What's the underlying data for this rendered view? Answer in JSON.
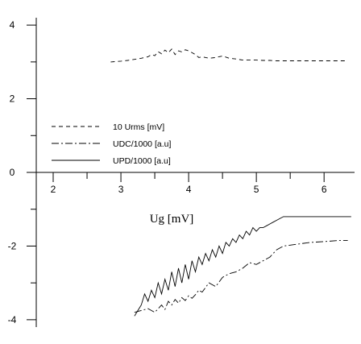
{
  "chart_data": {
    "type": "line",
    "title": "",
    "xlabel": "Ug [mV]",
    "ylabel": "",
    "xlim": [
      1.75,
      6.45
    ],
    "ylim": [
      -4.2,
      4.2
    ],
    "x_ticks": [
      "2",
      "3",
      "4",
      "5",
      "6"
    ],
    "y_ticks": [
      "4",
      "2",
      "0",
      "-2",
      "-4"
    ],
    "grid": false,
    "legend_position": "center-left",
    "series": [
      {
        "name": "10 Urms [mV]",
        "line_style": "dashed",
        "color": "#000000",
        "x": [
          2.85,
          3.0,
          3.1,
          3.2,
          3.3,
          3.4,
          3.45,
          3.5,
          3.55,
          3.6,
          3.65,
          3.7,
          3.75,
          3.8,
          3.85,
          3.9,
          3.95,
          4.0,
          4.05,
          4.1,
          4.15,
          4.2,
          4.3,
          4.4,
          4.5,
          4.6,
          4.7,
          4.8,
          4.9,
          5.0,
          5.1,
          5.2,
          5.3,
          5.4,
          5.5,
          5.6,
          5.7,
          5.8,
          5.9,
          6.0,
          6.1,
          6.2,
          6.35
        ],
        "y": [
          3.0,
          3.02,
          3.04,
          3.07,
          3.1,
          3.14,
          3.2,
          3.17,
          3.28,
          3.22,
          3.32,
          3.25,
          3.35,
          3.2,
          3.3,
          3.27,
          3.33,
          3.3,
          3.25,
          3.2,
          3.12,
          3.14,
          3.1,
          3.12,
          3.16,
          3.1,
          3.08,
          3.05,
          3.05,
          3.05,
          3.04,
          3.04,
          3.03,
          3.03,
          3.03,
          3.03,
          3.03,
          3.03,
          3.03,
          3.03,
          3.03,
          3.03,
          3.03
        ]
      },
      {
        "name": "UDC/1000 [a.u]",
        "line_style": "dash-dot",
        "color": "#000000",
        "x": [
          3.2,
          3.3,
          3.4,
          3.5,
          3.6,
          3.65,
          3.7,
          3.75,
          3.8,
          3.85,
          3.9,
          3.95,
          4.0,
          4.05,
          4.1,
          4.15,
          4.2,
          4.3,
          4.4,
          4.5,
          4.6,
          4.7,
          4.8,
          4.9,
          5.0,
          5.1,
          5.2,
          5.3,
          5.4,
          5.6,
          5.8,
          6.0,
          6.2,
          6.35
        ],
        "y": [
          -3.8,
          -3.75,
          -3.7,
          -3.8,
          -3.6,
          -3.72,
          -3.5,
          -3.6,
          -3.45,
          -3.55,
          -3.4,
          -3.48,
          -3.35,
          -3.42,
          -3.32,
          -3.2,
          -3.25,
          -3.0,
          -3.1,
          -2.85,
          -2.75,
          -2.7,
          -2.6,
          -2.45,
          -2.5,
          -2.4,
          -2.3,
          -2.1,
          -2.0,
          -1.95,
          -1.9,
          -1.88,
          -1.85,
          -1.85
        ]
      },
      {
        "name": "UPD/1000 [a.u]",
        "line_style": "solid",
        "color": "#000000",
        "x": [
          3.2,
          3.25,
          3.3,
          3.35,
          3.4,
          3.45,
          3.5,
          3.55,
          3.6,
          3.65,
          3.7,
          3.75,
          3.8,
          3.85,
          3.9,
          3.95,
          4.0,
          4.05,
          4.1,
          4.15,
          4.2,
          4.25,
          4.3,
          4.35,
          4.4,
          4.45,
          4.5,
          4.55,
          4.6,
          4.65,
          4.7,
          4.75,
          4.8,
          4.85,
          4.9,
          4.95,
          5.0,
          5.05,
          5.1,
          5.15,
          5.2,
          5.25,
          5.3,
          5.35,
          5.4,
          5.5,
          5.7,
          5.9,
          6.1,
          6.3,
          6.4
        ],
        "y": [
          -3.9,
          -3.75,
          -3.6,
          -3.3,
          -3.5,
          -3.2,
          -3.4,
          -3.0,
          -3.3,
          -2.9,
          -3.2,
          -2.7,
          -3.1,
          -2.6,
          -3.0,
          -2.5,
          -2.9,
          -2.4,
          -2.7,
          -2.3,
          -2.5,
          -2.2,
          -2.4,
          -2.1,
          -2.3,
          -2.0,
          -2.2,
          -1.9,
          -2.0,
          -1.8,
          -1.9,
          -1.7,
          -1.8,
          -1.6,
          -1.7,
          -1.5,
          -1.6,
          -1.5,
          -1.5,
          -1.45,
          -1.4,
          -1.35,
          -1.3,
          -1.25,
          -1.2,
          -1.2,
          -1.2,
          -1.2,
          -1.2,
          -1.2,
          -1.2
        ]
      }
    ]
  }
}
